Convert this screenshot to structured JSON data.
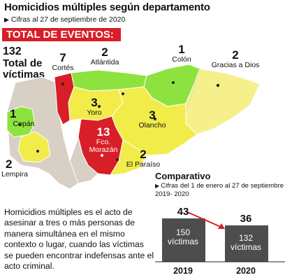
{
  "title": "Homicidios múltiples según departamento",
  "subtitle": "Cifras al 27 de septiembre de 2020",
  "total_banner": "TOTAL DE EVENTOS: 36",
  "total_victims": {
    "number": "132",
    "label_line1": "Total de",
    "label_line2": "víctimas"
  },
  "colors": {
    "red": "#d81e27",
    "green": "#8ee23f",
    "yellow": "#f2ec4b",
    "lightyellow": "#f5f08a",
    "grey": "#d8d0c4",
    "bar": "#4d4d4d"
  },
  "departments": [
    {
      "name": "Cortés",
      "count": "7",
      "color": "red"
    },
    {
      "name": "Atlántida",
      "count": "2",
      "color": "green"
    },
    {
      "name": "Colón",
      "count": "1",
      "color": "green"
    },
    {
      "name": "Gracias a Dios",
      "count": "2",
      "color": "lightyellow"
    },
    {
      "name": "Copán",
      "count": "1",
      "color": "green"
    },
    {
      "name": "Yoro",
      "count": "3",
      "color": "yellow"
    },
    {
      "name": "Olancho",
      "count": "3",
      "color": "yellow"
    },
    {
      "name": "Fco. Morazán",
      "count": "13",
      "color": "red"
    },
    {
      "name": "El Paraíso",
      "count": "2",
      "color": "yellow"
    },
    {
      "name": "Lempira",
      "count": "2",
      "color": "yellow"
    }
  ],
  "comparison": {
    "title": "Comparativo",
    "subtitle": "Cifras del 1 de enero al 27 de septiembre 2019- 2020",
    "bars": [
      {
        "year": "2019",
        "events": "43",
        "victims": "150",
        "unit": "víctimas"
      },
      {
        "year": "2020",
        "events": "36",
        "victims": "132",
        "unit": "víctimas"
      }
    ]
  },
  "description": "Homicidios múltiples es el acto de asesinar a tres o más personas de manera simultánea en el mismo contexto o lugar, cuando las víctimas se pueden encontrar indefensas ante el acto criminal."
}
